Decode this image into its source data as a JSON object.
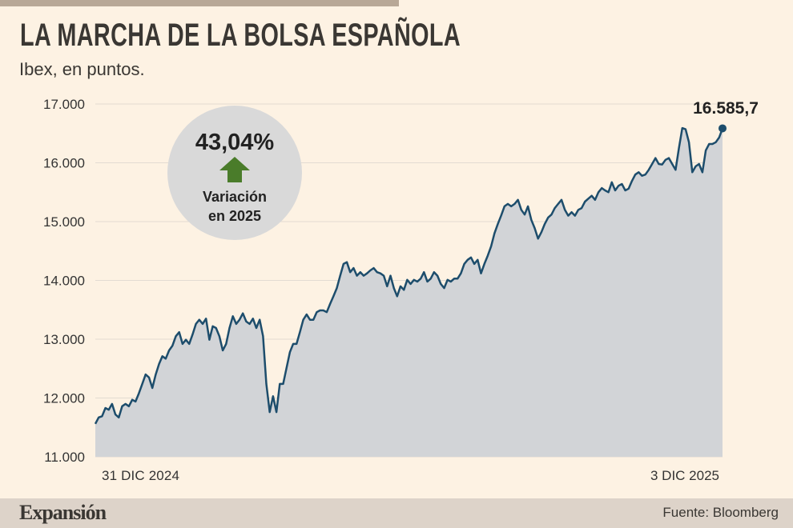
{
  "header": {
    "title": "LA MARCHA DE LA BOLSA ESPAÑOLA",
    "subtitle": "Ibex, en puntos."
  },
  "badge": {
    "value": "43,04%",
    "label_line1": "Variación",
    "label_line2": "en 2025",
    "arrow_icon": "up-arrow-icon",
    "arrow_color": "#4a7c2a"
  },
  "footer": {
    "logo": "Expansión",
    "source": "Fuente: Bloomberg"
  },
  "colors": {
    "line": "#1d4d6c",
    "area": "#d2d4d7",
    "background": "#fdf2e3"
  },
  "chart_data": {
    "type": "area",
    "title": "LA MARCHA DE LA BOLSA ESPAÑOLA",
    "ylabel": "Ibex, en puntos.",
    "ylim": [
      11000,
      17000
    ],
    "yticks": [
      17000,
      16000,
      15000,
      14000,
      13000,
      12000,
      11000
    ],
    "ytick_labels": [
      "17.000",
      "16.000",
      "15.000",
      "14.000",
      "13.000",
      "12.000",
      "11.000"
    ],
    "x_labels": [
      "31 DIC 2024",
      "3 DIC 2025"
    ],
    "last_value_label": "16.585,7",
    "grid": true,
    "values": [
      11560,
      11670,
      11690,
      11830,
      11800,
      11900,
      11720,
      11670,
      11860,
      11900,
      11860,
      11970,
      11940,
      12080,
      12240,
      12400,
      12350,
      12170,
      12400,
      12580,
      12710,
      12670,
      12810,
      12890,
      13050,
      13120,
      12920,
      12990,
      12920,
      13080,
      13260,
      13330,
      13260,
      13350,
      12990,
      13220,
      13190,
      13050,
      12810,
      12920,
      13190,
      13390,
      13260,
      13330,
      13440,
      13300,
      13260,
      13350,
      13190,
      13330,
      13050,
      12240,
      11760,
      12030,
      11760,
      12240,
      12240,
      12510,
      12780,
      12920,
      12920,
      13120,
      13330,
      13420,
      13330,
      13330,
      13460,
      13490,
      13490,
      13460,
      13600,
      13730,
      13870,
      14080,
      14280,
      14310,
      14140,
      14210,
      14080,
      14140,
      14080,
      14120,
      14170,
      14210,
      14140,
      14120,
      14080,
      13900,
      14080,
      13870,
      13730,
      13900,
      13840,
      14010,
      13940,
      14010,
      13980,
      14030,
      14140,
      13980,
      14030,
      14140,
      14080,
      13940,
      13870,
      14010,
      13980,
      14030,
      14030,
      14120,
      14280,
      14350,
      14390,
      14280,
      14350,
      14120,
      14280,
      14420,
      14580,
      14800,
      14960,
      15100,
      15260,
      15300,
      15260,
      15300,
      15370,
      15200,
      15120,
      15260,
      15030,
      14890,
      14710,
      14820,
      14960,
      15070,
      15120,
      15230,
      15300,
      15370,
      15200,
      15100,
      15160,
      15100,
      15200,
      15230,
      15340,
      15390,
      15440,
      15370,
      15500,
      15570,
      15530,
      15500,
      15670,
      15530,
      15610,
      15640,
      15530,
      15560,
      15690,
      15800,
      15840,
      15780,
      15800,
      15880,
      15980,
      16080,
      15980,
      15970,
      16050,
      16080,
      15980,
      15880,
      16250,
      16590,
      16570,
      16350,
      15840,
      15940,
      15980,
      15840,
      16210,
      16320,
      16320,
      16350,
      16430,
      16585.7
    ]
  }
}
